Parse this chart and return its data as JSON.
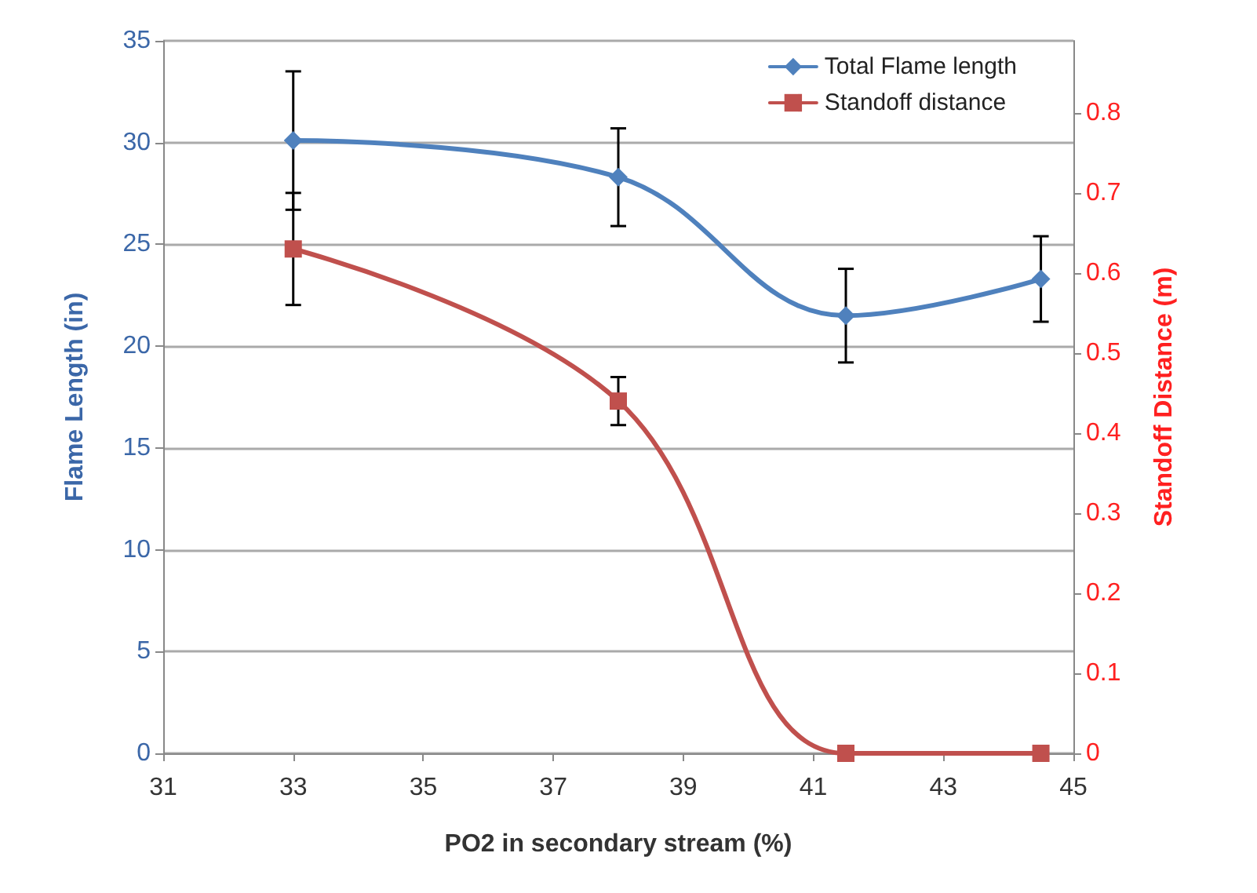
{
  "chart_data": {
    "type": "line",
    "xlabel": "PO2 in secondary stream (%)",
    "ylabel": "Flame Length (in)",
    "y2label": "Standoff Distance (m)",
    "x": [
      33,
      38,
      41.5,
      44.5
    ],
    "series": [
      {
        "name": "Total Flame length",
        "color": "#4f81bd",
        "marker": "diamond",
        "values": [
          30.1,
          28.3,
          21.5,
          23.3
        ],
        "errors": [
          3.4,
          2.4,
          2.3,
          2.1
        ]
      },
      {
        "name": "Standoff distance",
        "color": "#c0504d",
        "marker": "square",
        "axis": "y2",
        "values": [
          0.63,
          0.44,
          0,
          0
        ],
        "errors": [
          0.07,
          0.03,
          null,
          null
        ]
      }
    ],
    "xlim": [
      31,
      45
    ],
    "xticks": [
      31,
      33,
      35,
      37,
      39,
      41,
      43,
      45
    ],
    "ylim": [
      0,
      35
    ],
    "yticks": [
      0,
      5,
      10,
      15,
      20,
      25,
      30,
      35
    ],
    "y2lim": [
      0,
      0.89
    ],
    "y2ticks": [
      0,
      0.1,
      0.2,
      0.3,
      0.4,
      0.5,
      0.6,
      0.7,
      0.8
    ],
    "grid": "y",
    "legend": "top right",
    "line_style": "solid"
  }
}
